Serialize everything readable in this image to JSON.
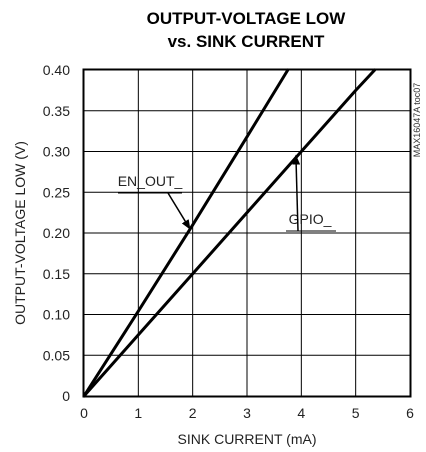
{
  "chart_data": {
    "type": "line",
    "title_lines": [
      "OUTPUT-VOLTAGE LOW",
      "vs. SINK CURRENT"
    ],
    "xlabel": "SINK CURRENT (mA)",
    "ylabel": "OUTPUT-VOLTAGE LOW (V)",
    "xlim": [
      0,
      6
    ],
    "ylim": [
      0,
      0.4
    ],
    "x_ticks": [
      0,
      1,
      2,
      3,
      4,
      5,
      6
    ],
    "x_tick_labels": [
      "0",
      "1",
      "2",
      "3",
      "4",
      "5",
      "6"
    ],
    "y_ticks": [
      0,
      0.05,
      0.1,
      0.15,
      0.2,
      0.25,
      0.3,
      0.35,
      0.4
    ],
    "y_tick_labels": [
      "0",
      "0.05",
      "0.10",
      "0.15",
      "0.20",
      "0.25",
      "0.30",
      "0.35",
      "0.40"
    ],
    "grid": true,
    "series": [
      {
        "name": "EN_OUT_",
        "x": [
          0,
          1,
          2,
          3,
          3.75
        ],
        "y": [
          0,
          0.104,
          0.21,
          0.318,
          0.4
        ]
      },
      {
        "name": "GPIO_",
        "x": [
          0,
          1,
          2,
          3,
          4,
          5,
          5.35
        ],
        "y": [
          0,
          0.075,
          0.15,
          0.225,
          0.3,
          0.375,
          0.4
        ]
      }
    ],
    "annotations": [
      {
        "text": "EN_OUT_",
        "series": "EN_OUT_",
        "arrow_to": [
          1.95,
          0.205
        ]
      },
      {
        "text": "GPIO_",
        "series": "GPIO_",
        "arrow_to": [
          3.9,
          0.295
        ]
      }
    ],
    "side_code": "MAX16047A toc07"
  }
}
